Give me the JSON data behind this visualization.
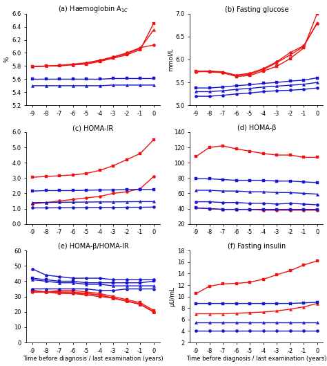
{
  "x": [
    -9,
    -8,
    -7,
    -6,
    -5,
    -4,
    -3,
    -2,
    -1,
    0
  ],
  "panel_a": {
    "title": "(a) Haemoglobin A$_{1C}$",
    "ylabel": "%",
    "ylim": [
      5.2,
      6.6
    ],
    "yticks": [
      5.2,
      5.4,
      5.6,
      5.8,
      6.0,
      6.2,
      6.4,
      6.6
    ],
    "red_lines": [
      [
        5.79,
        5.8,
        5.8,
        5.82,
        5.83,
        5.87,
        5.92,
        5.97,
        6.05,
        6.45
      ],
      [
        5.79,
        5.8,
        5.81,
        5.82,
        5.84,
        5.88,
        5.93,
        5.99,
        6.07,
        6.35
      ],
      [
        5.79,
        5.8,
        5.81,
        5.83,
        5.85,
        5.89,
        5.94,
        6.0,
        6.08,
        6.12
      ]
    ],
    "red_markers": [
      "s",
      "^",
      "o"
    ],
    "blue_lines": [
      [
        5.6,
        5.6,
        5.6,
        5.6,
        5.6,
        5.6,
        5.61,
        5.61,
        5.61,
        5.61
      ],
      [
        5.5,
        5.5,
        5.5,
        5.5,
        5.5,
        5.5,
        5.51,
        5.51,
        5.51,
        5.51
      ]
    ],
    "blue_markers": [
      "s",
      "^"
    ]
  },
  "panel_b": {
    "title": "(b) Fasting glucose",
    "ylabel": "mmol/L",
    "ylim": [
      5.0,
      7.0
    ],
    "yticks": [
      5.0,
      5.5,
      6.0,
      6.5,
      7.0
    ],
    "red_lines": [
      [
        5.75,
        5.73,
        5.71,
        5.63,
        5.65,
        5.75,
        5.85,
        6.02,
        6.25,
        7.0
      ],
      [
        5.74,
        5.75,
        5.73,
        5.65,
        5.68,
        5.78,
        5.93,
        6.1,
        6.28,
        6.8
      ],
      [
        5.73,
        5.74,
        5.72,
        5.66,
        5.7,
        5.8,
        5.95,
        6.15,
        6.3,
        6.78
      ]
    ],
    "red_markers": [
      "s",
      "^",
      "o"
    ],
    "blue_lines": [
      [
        5.38,
        5.38,
        5.4,
        5.43,
        5.45,
        5.48,
        5.5,
        5.53,
        5.55,
        5.6
      ],
      [
        5.3,
        5.3,
        5.32,
        5.35,
        5.37,
        5.4,
        5.42,
        5.44,
        5.46,
        5.5
      ],
      [
        5.2,
        5.2,
        5.22,
        5.25,
        5.27,
        5.3,
        5.32,
        5.33,
        5.35,
        5.38
      ]
    ],
    "blue_markers": [
      "s",
      "^",
      "o"
    ]
  },
  "panel_c": {
    "title": "(c) HOMA-IR",
    "ylabel": "",
    "ylim": [
      0.0,
      6.0
    ],
    "yticks": [
      0.0,
      1.0,
      2.0,
      3.0,
      4.0,
      5.0,
      6.0
    ],
    "red_lines": [
      [
        3.05,
        3.1,
        3.15,
        3.2,
        3.3,
        3.5,
        3.8,
        4.2,
        4.6,
        5.5
      ],
      [
        1.3,
        1.4,
        1.5,
        1.6,
        1.7,
        1.8,
        2.0,
        2.1,
        2.3,
        3.1
      ]
    ],
    "red_markers": [
      "s",
      "o"
    ],
    "blue_lines": [
      [
        2.15,
        2.18,
        2.18,
        2.18,
        2.2,
        2.22,
        2.22,
        2.25,
        2.25,
        2.25
      ],
      [
        1.4,
        1.4,
        1.42,
        1.42,
        1.43,
        1.44,
        1.44,
        1.45,
        1.46,
        1.46
      ],
      [
        1.05,
        1.05,
        1.06,
        1.06,
        1.07,
        1.08,
        1.08,
        1.09,
        1.09,
        1.1
      ]
    ],
    "blue_markers": [
      "s",
      "^",
      "o"
    ]
  },
  "panel_d": {
    "title": "(d) HOMA-β",
    "ylabel": "",
    "ylim": [
      20,
      140
    ],
    "yticks": [
      20,
      40,
      60,
      80,
      100,
      120,
      140
    ],
    "red_lines": [
      [
        108,
        120,
        122,
        118,
        115,
        112,
        110,
        110,
        107,
        107
      ],
      [
        41,
        40,
        39,
        39,
        39,
        38,
        38,
        38,
        38,
        38
      ]
    ],
    "red_markers": [
      "s",
      "o"
    ],
    "blue_lines": [
      [
        79,
        79,
        78,
        77,
        77,
        77,
        76,
        76,
        75,
        74
      ],
      [
        64,
        64,
        63,
        63,
        62,
        62,
        61,
        61,
        60,
        59
      ],
      [
        49,
        49,
        48,
        48,
        47,
        47,
        46,
        47,
        46,
        45
      ],
      [
        41,
        40,
        39,
        39,
        39,
        39,
        39,
        39,
        39,
        39
      ]
    ],
    "blue_markers": [
      "s",
      "^",
      "o",
      "s"
    ]
  },
  "panel_e": {
    "title": "(e) HOMA-β/HOMA-IR",
    "ylabel": "",
    "ylim": [
      0,
      60
    ],
    "yticks": [
      0,
      10,
      20,
      30,
      40,
      50,
      60
    ],
    "red_lines": [
      [
        34,
        33,
        34,
        34,
        33,
        32,
        30,
        28,
        26,
        21
      ],
      [
        34,
        33,
        33,
        33,
        32,
        31,
        29,
        27,
        25,
        20
      ],
      [
        33,
        33,
        33,
        32,
        32,
        31,
        29,
        27,
        25,
        20
      ],
      [
        33,
        33,
        32,
        32,
        31,
        30,
        29,
        27,
        25,
        20
      ]
    ],
    "red_markers": [
      "s",
      "^",
      "o",
      "s"
    ],
    "blue_lines": [
      [
        48,
        44,
        43,
        42,
        42,
        42,
        41,
        41,
        41,
        41
      ],
      [
        42,
        41,
        40,
        40,
        39,
        39,
        39,
        39,
        39,
        40
      ],
      [
        41,
        40,
        39,
        39,
        38,
        38,
        37,
        37,
        37,
        37
      ],
      [
        35,
        35,
        35,
        35,
        35,
        34,
        34,
        35,
        35,
        35
      ]
    ],
    "blue_markers": [
      "o",
      "s",
      "^",
      "o"
    ]
  },
  "panel_f": {
    "title": "(f) Fasting insulin",
    "ylabel": "μU/mL",
    "ylim": [
      2,
      18
    ],
    "yticks": [
      2,
      4,
      6,
      8,
      10,
      12,
      14,
      16,
      18
    ],
    "red_lines": [
      [
        10.5,
        11.8,
        12.2,
        12.3,
        12.5,
        13.0,
        13.8,
        14.5,
        15.5,
        16.2
      ],
      [
        7.0,
        7.0,
        7.0,
        7.1,
        7.2,
        7.3,
        7.5,
        7.8,
        8.2,
        8.8
      ]
    ],
    "red_markers": [
      "s",
      "^"
    ],
    "blue_lines": [
      [
        8.8,
        8.8,
        8.8,
        8.8,
        8.8,
        8.8,
        8.8,
        8.8,
        8.9,
        9.0
      ],
      [
        5.5,
        5.5,
        5.5,
        5.5,
        5.5,
        5.5,
        5.5,
        5.5,
        5.5,
        5.5
      ],
      [
        4.0,
        4.0,
        4.0,
        4.0,
        4.0,
        4.0,
        4.0,
        4.0,
        4.0,
        4.0
      ]
    ],
    "blue_markers": [
      "s",
      "^",
      "o"
    ]
  },
  "red_color": "#ee1111",
  "blue_color": "#1515cc",
  "line_width": 1.0,
  "marker_size": 3.0,
  "xlabel": "Time before diagnosis / last examination (years)",
  "title_fontsize": 7.0,
  "label_fontsize": 6.5,
  "tick_fontsize": 6.0
}
